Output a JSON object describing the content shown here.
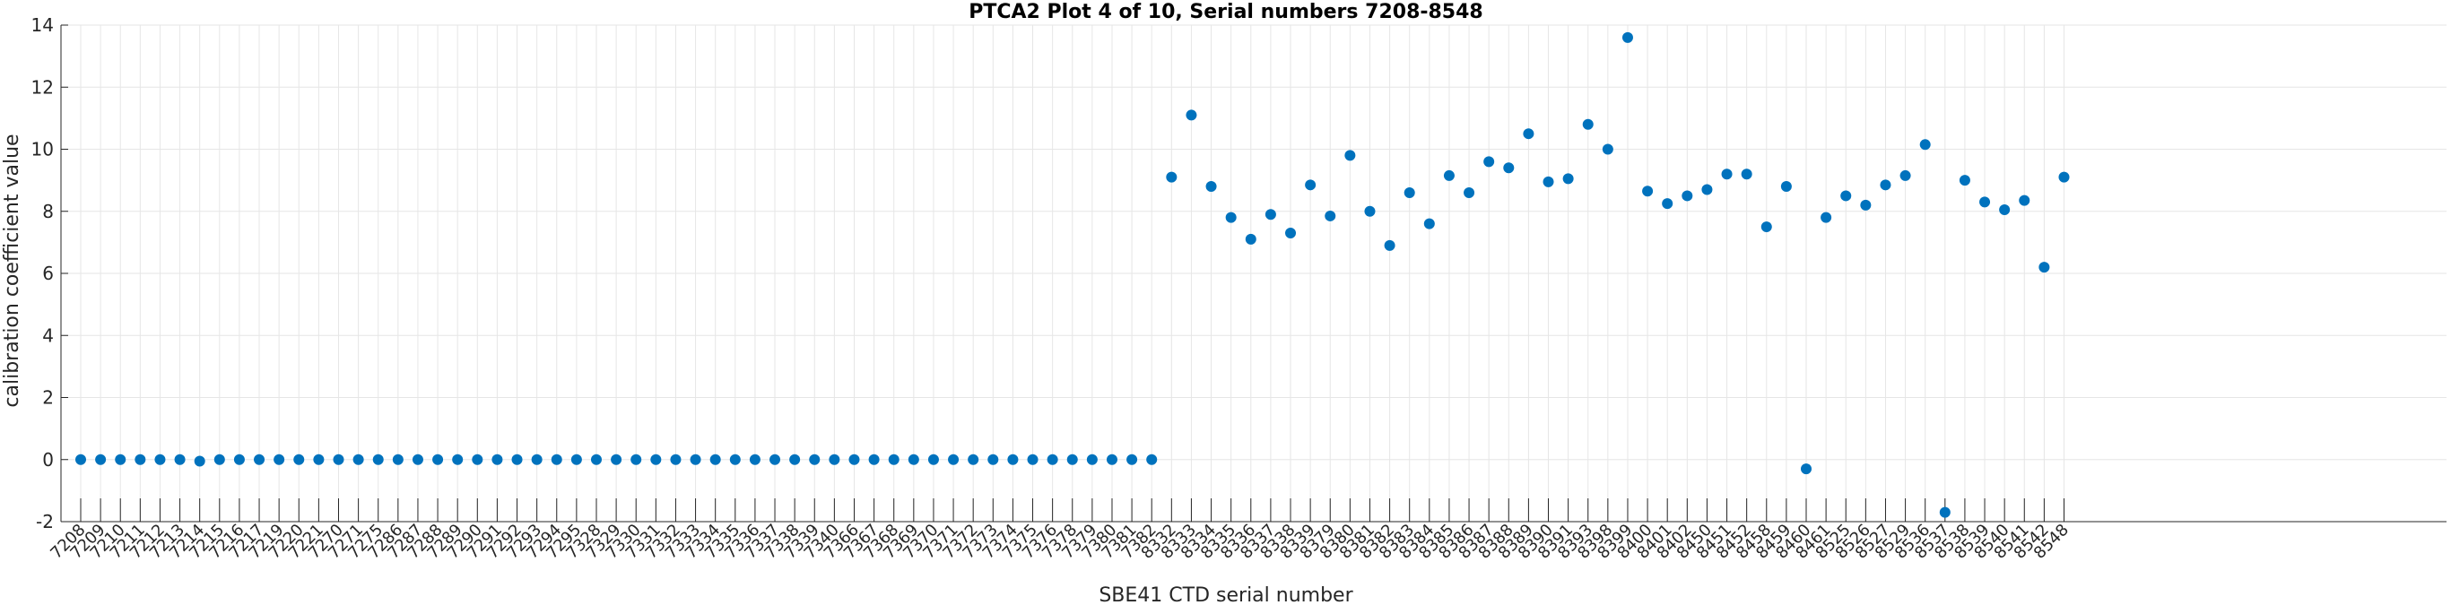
{
  "chart_data": {
    "type": "scatter",
    "title": "PTCA2 Plot 4 of 10, Serial numbers 7208-8548",
    "xlabel": "SBE41 CTD serial number",
    "ylabel": "calibration coefficient value",
    "ylim": [
      -2,
      14
    ],
    "yticks": [
      -2,
      0,
      2,
      4,
      6,
      8,
      10,
      12,
      14
    ],
    "grid": true,
    "marker_color": "#0072BD",
    "categories": [
      "7208",
      "7209",
      "7210",
      "7211",
      "7212",
      "7213",
      "7214",
      "7215",
      "7216",
      "7217",
      "7219",
      "7220",
      "7221",
      "7270",
      "7271",
      "7275",
      "7286",
      "7287",
      "7288",
      "7289",
      "7290",
      "7291",
      "7292",
      "7293",
      "7294",
      "7295",
      "7328",
      "7329",
      "7330",
      "7331",
      "7332",
      "7333",
      "7334",
      "7335",
      "7336",
      "7337",
      "7338",
      "7339",
      "7340",
      "7366",
      "7367",
      "7368",
      "7369",
      "7370",
      "7371",
      "7372",
      "7373",
      "7374",
      "7375",
      "7376",
      "7378",
      "7379",
      "7380",
      "7381",
      "7382",
      "8332",
      "8333",
      "8334",
      "8335",
      "8336",
      "8337",
      "8338",
      "8339",
      "8379",
      "8380",
      "8381",
      "8382",
      "8383",
      "8384",
      "8385",
      "8386",
      "8387",
      "8388",
      "8389",
      "8390",
      "8391",
      "8393",
      "8398",
      "8399",
      "8400",
      "8401",
      "8402",
      "8450",
      "8451",
      "8452",
      "8458",
      "8459",
      "8460",
      "8461",
      "8525",
      "8526",
      "8527",
      "8529",
      "8536",
      "8537",
      "8538",
      "8539",
      "8540",
      "8541",
      "8542",
      "8548"
    ],
    "values": [
      0,
      0,
      0,
      0,
      0,
      0,
      -0.05,
      0,
      0,
      0,
      0,
      0,
      0,
      0,
      0,
      0,
      0,
      0,
      0,
      0,
      0,
      0,
      0,
      0,
      0,
      0,
      0,
      0,
      0,
      0,
      0,
      0,
      0,
      0,
      0,
      0,
      0,
      0,
      0,
      0,
      0,
      0,
      0,
      0,
      0,
      0,
      0,
      0,
      0,
      0,
      0,
      0,
      0,
      0,
      0,
      9.1,
      11.1,
      8.8,
      7.8,
      7.1,
      7.9,
      7.3,
      8.85,
      7.85,
      9.8,
      8.0,
      6.9,
      8.6,
      7.6,
      9.15,
      8.6,
      9.6,
      9.4,
      10.5,
      8.95,
      9.05,
      10.8,
      10.0,
      13.6,
      8.65,
      8.25,
      8.5,
      8.7,
      9.2,
      9.2,
      7.5,
      8.8,
      -0.3,
      7.8,
      8.5,
      8.2,
      8.85,
      9.15,
      10.15,
      -1.7,
      9.0,
      8.3,
      8.05,
      8.35,
      6.2,
      9.1
    ]
  }
}
